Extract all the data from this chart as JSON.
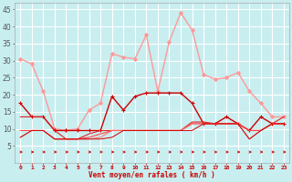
{
  "background_color": "#c8eef0",
  "grid_color": "#ffffff",
  "x_labels": [
    "0",
    "1",
    "2",
    "3",
    "4",
    "5",
    "6",
    "7",
    "8",
    "9",
    "10",
    "11",
    "12",
    "13",
    "14",
    "15",
    "16",
    "17",
    "18",
    "19",
    "20",
    "21",
    "22",
    "23"
  ],
  "xlabel": "Vent moyen/en rafales ( km/h )",
  "ylim": [
    0,
    47
  ],
  "yticks": [
    5,
    10,
    15,
    20,
    25,
    30,
    35,
    40,
    45
  ],
  "xlim": [
    -0.5,
    23.5
  ],
  "series": [
    {
      "name": "rafales",
      "color": "#ff9999",
      "lw": 1.0,
      "marker": "D",
      "ms": 2.0,
      "data": [
        30.5,
        29.0,
        21.0,
        10.0,
        9.5,
        10.0,
        15.5,
        17.5,
        32.0,
        31.0,
        30.5,
        37.5,
        21.0,
        35.5,
        44.0,
        39.0,
        26.0,
        24.5,
        25.0,
        26.5,
        21.0,
        17.5,
        13.5,
        13.5
      ]
    },
    {
      "name": "vent_moyen1",
      "color": "#cc0000",
      "lw": 1.0,
      "marker": "+",
      "ms": 3.0,
      "data": [
        17.5,
        13.5,
        13.5,
        9.5,
        9.5,
        9.5,
        9.5,
        9.5,
        19.5,
        15.5,
        19.5,
        20.5,
        20.5,
        20.5,
        20.5,
        17.5,
        11.5,
        11.5,
        13.5,
        11.5,
        9.5,
        13.5,
        11.5,
        11.5
      ]
    },
    {
      "name": "vent_moyen2",
      "color": "#dd2222",
      "lw": 0.8,
      "marker": null,
      "ms": 0,
      "data": [
        13.5,
        13.5,
        13.5,
        9.5,
        7.0,
        7.0,
        8.5,
        9.5,
        9.5,
        9.5,
        9.5,
        9.5,
        9.5,
        9.5,
        9.5,
        12.0,
        12.0,
        11.5,
        11.5,
        11.5,
        9.5,
        9.5,
        11.5,
        13.5
      ]
    },
    {
      "name": "vent_moyen3",
      "color": "#ff4444",
      "lw": 0.8,
      "marker": null,
      "ms": 0,
      "data": [
        9.5,
        9.5,
        9.5,
        7.0,
        7.0,
        7.0,
        7.5,
        8.5,
        9.5,
        9.5,
        9.5,
        9.5,
        9.5,
        9.5,
        9.5,
        11.5,
        11.5,
        11.5,
        11.5,
        11.5,
        9.5,
        9.5,
        11.5,
        11.5
      ]
    },
    {
      "name": "vent_moyen4",
      "color": "#ff6666",
      "lw": 0.7,
      "marker": null,
      "ms": 0,
      "data": [
        7.5,
        9.5,
        9.5,
        7.0,
        7.0,
        7.0,
        7.0,
        7.5,
        9.5,
        9.5,
        9.5,
        9.5,
        9.5,
        9.5,
        9.5,
        11.5,
        11.5,
        11.5,
        11.5,
        11.5,
        7.0,
        9.5,
        11.5,
        11.5
      ]
    },
    {
      "name": "vent_moyen5",
      "color": "#cc0000",
      "lw": 0.7,
      "marker": null,
      "ms": 0,
      "data": [
        7.5,
        9.5,
        9.5,
        7.0,
        7.0,
        7.0,
        7.0,
        7.0,
        7.5,
        9.5,
        9.5,
        9.5,
        9.5,
        9.5,
        9.5,
        9.5,
        11.5,
        11.5,
        11.5,
        11.5,
        7.0,
        9.5,
        11.5,
        11.5
      ]
    }
  ],
  "arrow_color": "#cc0000",
  "arrow_directions": [
    0,
    0,
    0,
    0,
    0,
    0,
    0,
    0,
    45,
    45,
    45,
    45,
    45,
    45,
    45,
    45,
    90,
    90,
    90,
    90,
    90,
    135,
    135,
    135
  ]
}
